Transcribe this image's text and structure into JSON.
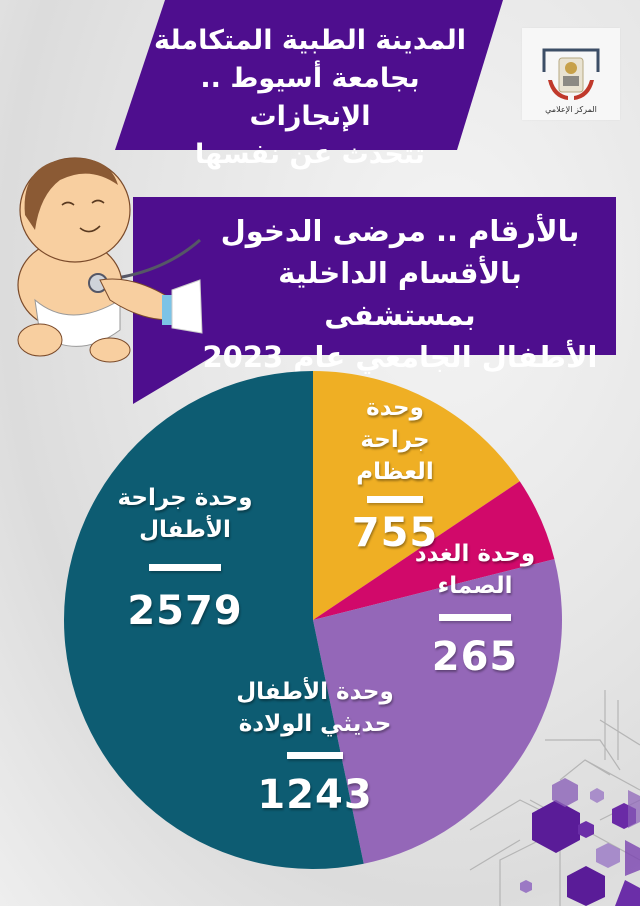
{
  "header": {
    "title_lines": [
      "المدينة الطبية المتكاملة",
      "بجامعة أسيوط .. الإنجازات",
      "تتحدث عن نفسها"
    ],
    "logo_caption": "المركز الإعلامي",
    "banner_color": "#4E0E8E"
  },
  "subtitle": {
    "lines": [
      "بالأرقام .. مرضى الدخول",
      "بالأقسام الداخلية بمستشفى",
      "الأطفال الجامعي عام 2023"
    ]
  },
  "chart_data": {
    "type": "pie",
    "title": "بالأرقام .. مرضى الدخول بالأقسام الداخلية بمستشفى الأطفال الجامعي عام 2023",
    "categories": [
      "وحدة جراحة العظام",
      "وحدة الغدد الصماء",
      "وحدة الأطفال حديثي الولادة",
      "وحدة جراحة الأطفال"
    ],
    "values": [
      755,
      265,
      1243,
      2579
    ],
    "colors": [
      "#EFAF24",
      "#D1096A",
      "#9467B8",
      "#0D5C72"
    ],
    "legend": "none (labels inside slices)"
  },
  "slices": [
    {
      "name_line1": "وحدة جراحة",
      "name_line2": "العظام",
      "value": "755"
    },
    {
      "name_line1": "وحدة الغدد",
      "name_line2": "الصماء",
      "value": "265"
    },
    {
      "name_line1": "وحدة الأطفال",
      "name_line2": "حديثي الولادة",
      "value": "1243"
    },
    {
      "name_line1": "وحدة جراحة",
      "name_line2": "الأطفال",
      "value": "2579"
    }
  ]
}
